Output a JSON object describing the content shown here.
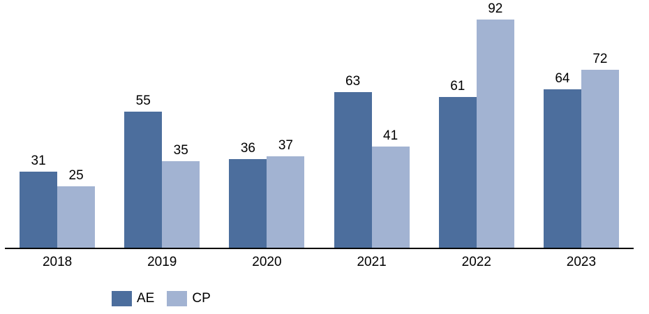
{
  "chart_data": {
    "type": "bar",
    "categories": [
      "2018",
      "2019",
      "2020",
      "2021",
      "2022",
      "2023"
    ],
    "series": [
      {
        "name": "AE",
        "color": "#4C6E9D",
        "values": [
          31,
          55,
          36,
          63,
          61,
          64
        ]
      },
      {
        "name": "CP",
        "color": "#A2B3D2",
        "values": [
          25,
          35,
          37,
          41,
          92,
          72
        ]
      }
    ],
    "title": "",
    "xlabel": "",
    "ylabel": "",
    "ylim": [
      0,
      100
    ],
    "grid": false,
    "data_labels": true,
    "legend_position": "bottom-left",
    "colors": {
      "axis_line": "#000000",
      "label_text": "#000000",
      "background": "#ffffff"
    }
  }
}
